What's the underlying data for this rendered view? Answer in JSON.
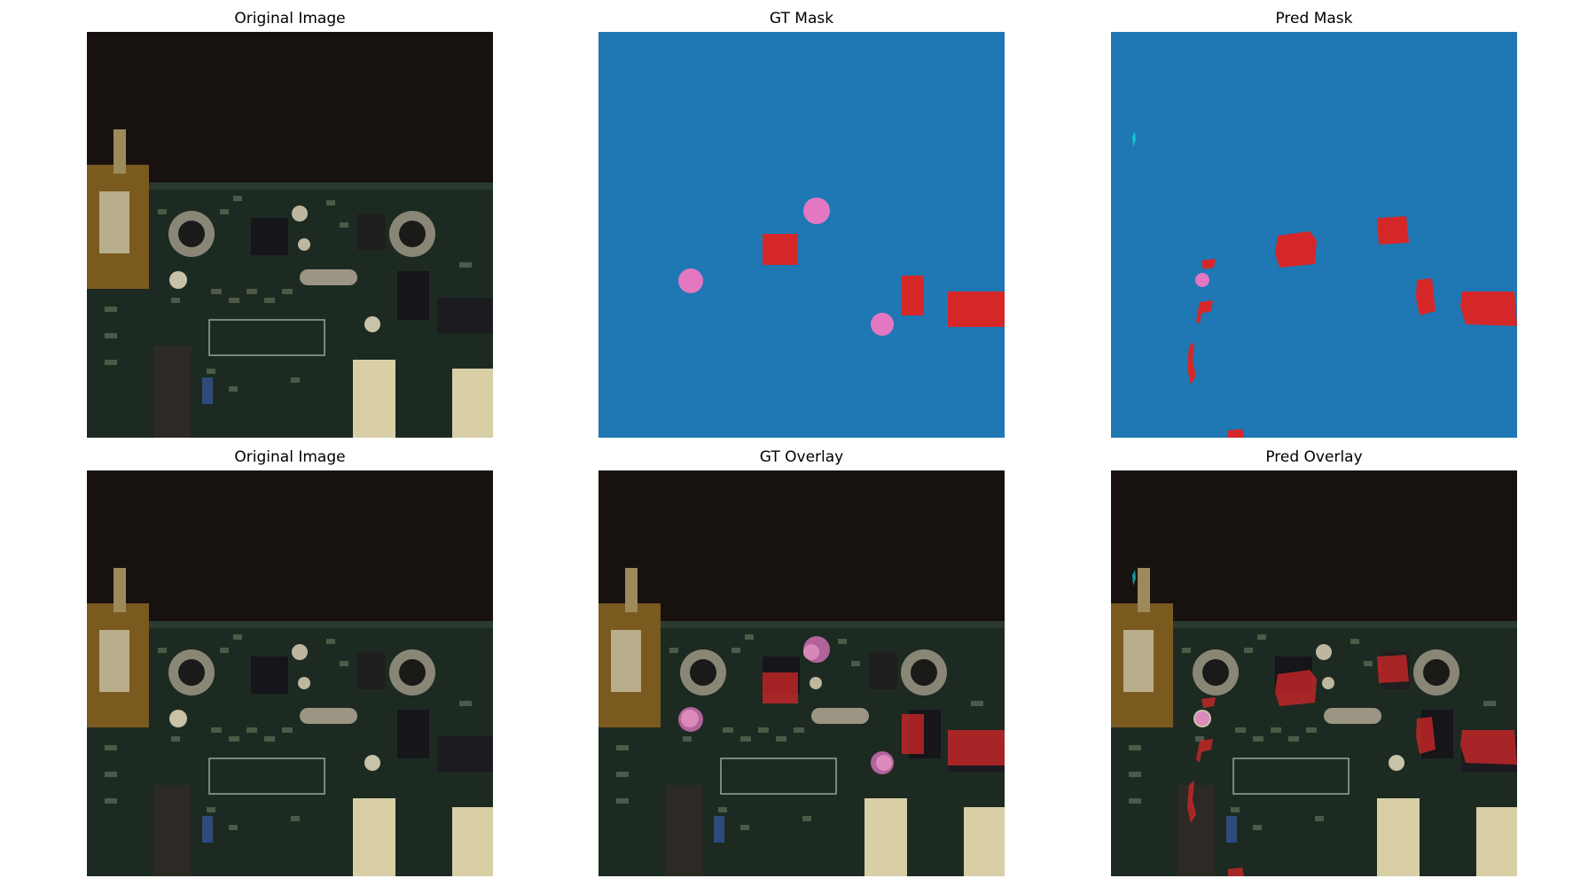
{
  "colors": {
    "background_class": "#1f77b4",
    "class_red": "#d62728",
    "class_pink": "#e377c2",
    "class_cyan": "#17becf",
    "board_green": "#1d2a22",
    "board_dark": "#1a1512"
  },
  "panels": [
    {
      "title": "Original Image",
      "kind": "image"
    },
    {
      "title": "GT Mask",
      "kind": "gt_mask"
    },
    {
      "title": "Pred Mask",
      "kind": "pred_mask"
    },
    {
      "title": "Original Image",
      "kind": "image"
    },
    {
      "title": "GT Overlay",
      "kind": "gt_overlay"
    },
    {
      "title": "Pred Overlay",
      "kind": "pred_overlay"
    }
  ]
}
